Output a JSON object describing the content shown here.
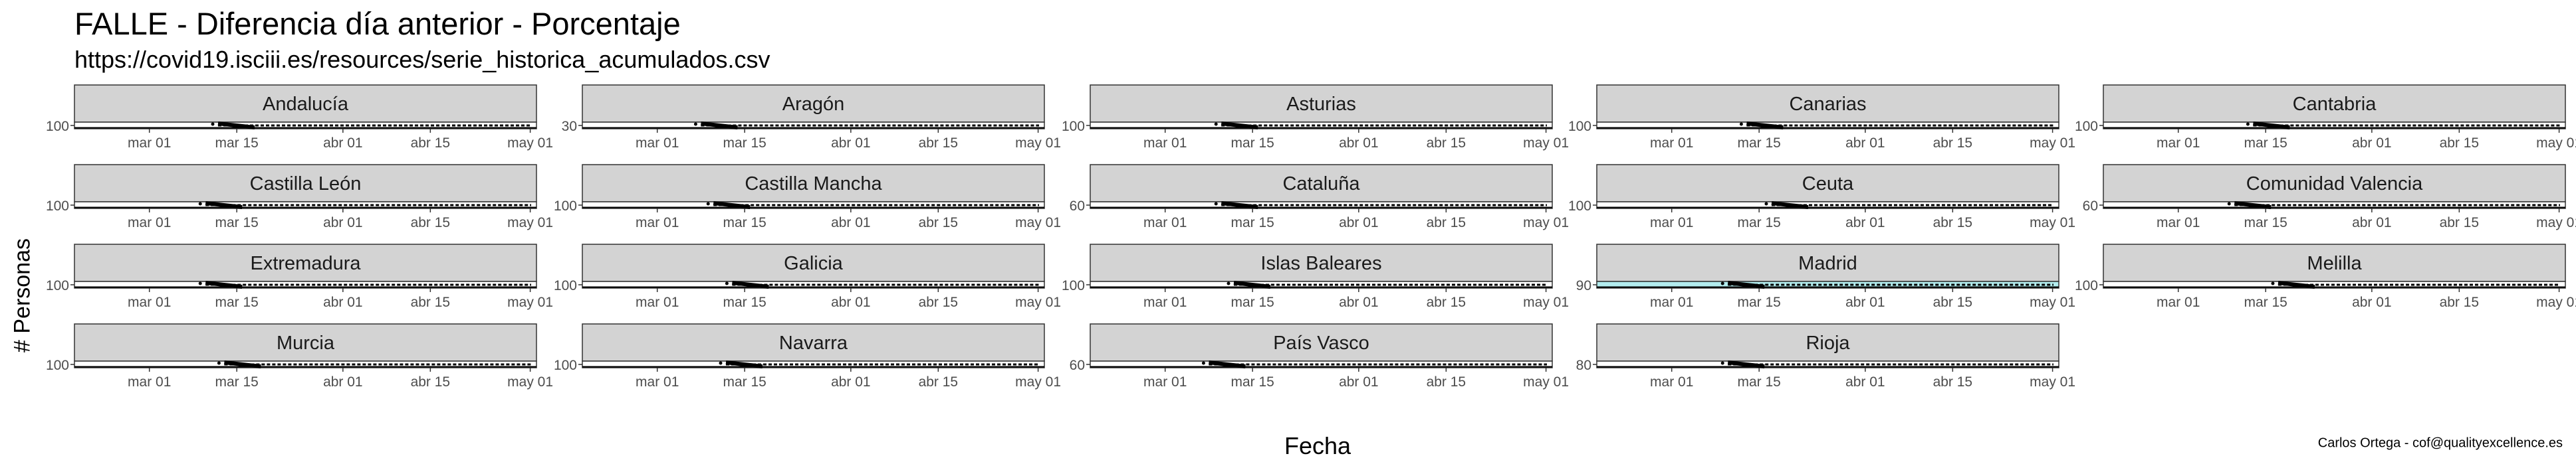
{
  "chart_data": {
    "type": "line",
    "title": "FALLE - Diferencia día anterior - Porcentaje",
    "subtitle": "https://covid19.isciii.es/resources/serie_historica_acumulados.csv",
    "xlabel": "Fecha",
    "ylabel": "# Personas",
    "caption": "Carlos Ortega - cof@qualityexcellence.es",
    "x_ticks": [
      "mar 01",
      "mar 15",
      "abr 01",
      "abr 15",
      "may 01"
    ],
    "x_tick_dates": [
      "2020-03-01",
      "2020-03-15",
      "2020-04-01",
      "2020-04-15",
      "2020-05-01"
    ],
    "xlim": [
      "2020-02-18",
      "2020-05-02"
    ],
    "grid": false,
    "facets": [
      {
        "name": "Andalucía",
        "y_tick_label": "100",
        "start": "2020-03-12"
      },
      {
        "name": "Aragón",
        "y_tick_label": "30",
        "start": "2020-03-08"
      },
      {
        "name": "Asturias",
        "y_tick_label": "100",
        "start": "2020-03-10"
      },
      {
        "name": "Canarias",
        "y_tick_label": "100",
        "start": "2020-03-13"
      },
      {
        "name": "Cantabria",
        "y_tick_label": "100",
        "start": "2020-03-13"
      },
      {
        "name": "Castilla León",
        "y_tick_label": "100",
        "start": "2020-03-10"
      },
      {
        "name": "Castilla Mancha",
        "y_tick_label": "100",
        "start": "2020-03-10"
      },
      {
        "name": "Cataluña",
        "y_tick_label": "60",
        "start": "2020-03-10"
      },
      {
        "name": "Ceuta",
        "y_tick_label": "100",
        "start": "2020-03-17"
      },
      {
        "name": "Comunidad Valencia",
        "y_tick_label": "60",
        "start": "2020-03-10"
      },
      {
        "name": "Extremadura",
        "y_tick_label": "100",
        "start": "2020-03-10"
      },
      {
        "name": "Galicia",
        "y_tick_label": "100",
        "start": "2020-03-13"
      },
      {
        "name": "Islas Baleares",
        "y_tick_label": "100",
        "start": "2020-03-12"
      },
      {
        "name": "Madrid",
        "y_tick_label": "90",
        "start": "2020-03-10",
        "highlight": true
      },
      {
        "name": "Melilla",
        "y_tick_label": "100",
        "start": "2020-03-17"
      },
      {
        "name": "Murcia",
        "y_tick_label": "100",
        "start": "2020-03-13"
      },
      {
        "name": "Navarra",
        "y_tick_label": "100",
        "start": "2020-03-12"
      },
      {
        "name": "País Vasco",
        "y_tick_label": "60",
        "start": "2020-03-08"
      },
      {
        "name": "Rioja",
        "y_tick_label": "80",
        "start": "2020-03-10"
      }
    ],
    "colors": {
      "strip_fill": "#d3d3d3",
      "highlight_fill": "#b2ecee",
      "line": "#000000"
    }
  }
}
